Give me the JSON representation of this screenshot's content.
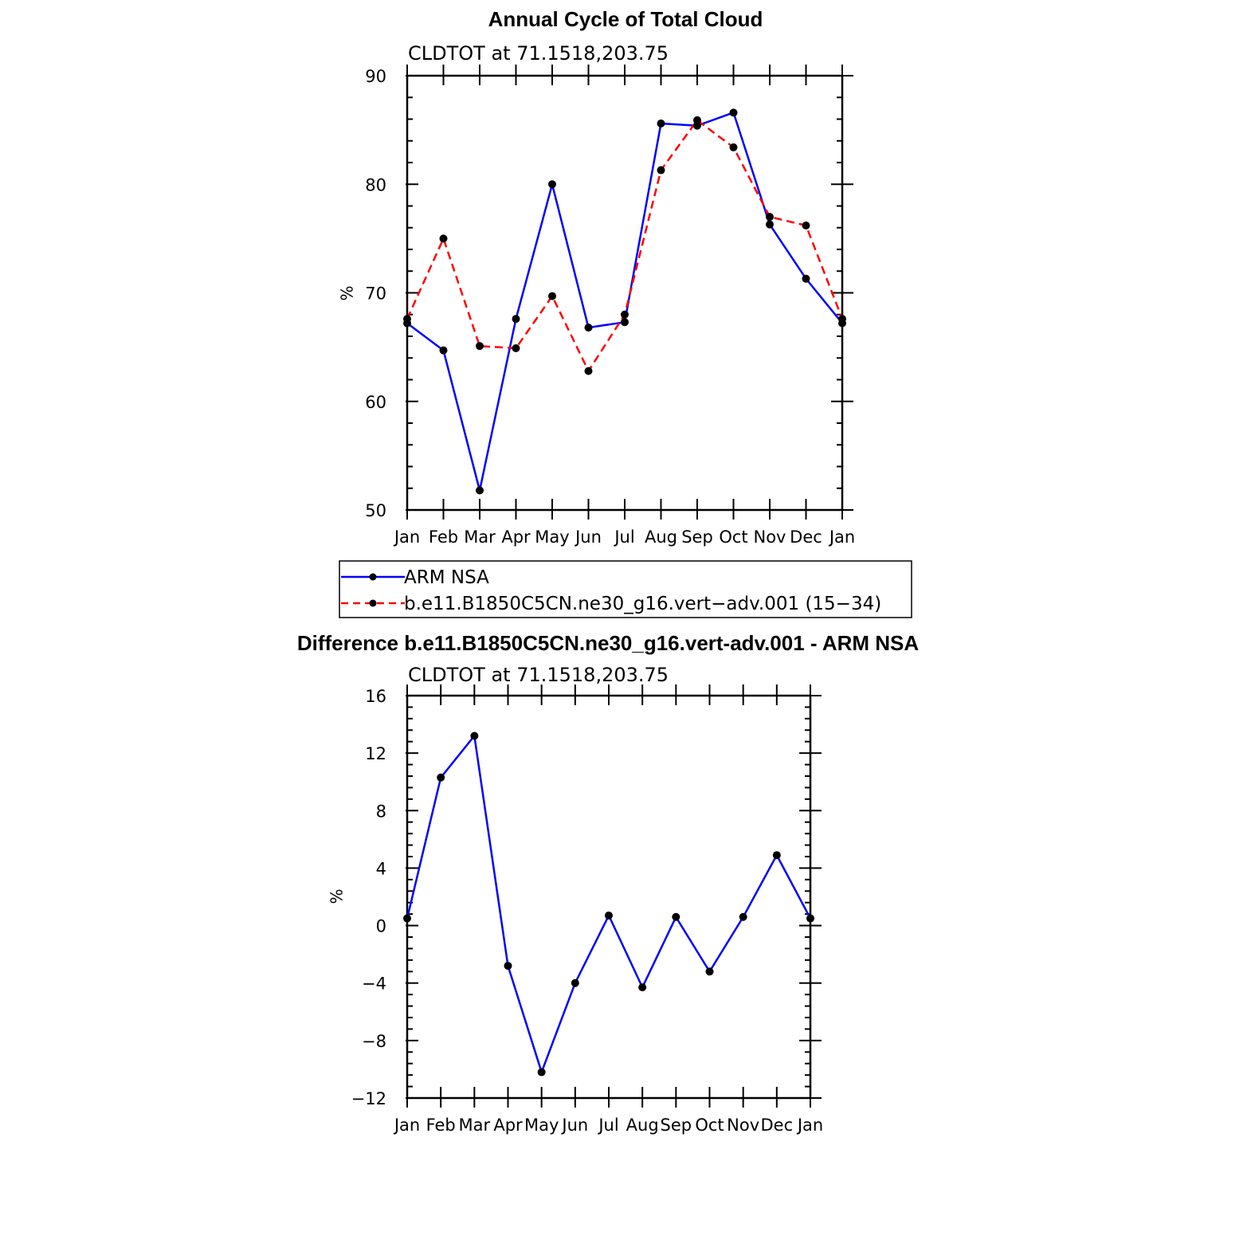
{
  "chart_data": [
    {
      "type": "line",
      "title": "Annual Cycle of Total Cloud",
      "subtitle": "CLDTOT at 71.1518,203.75",
      "ylabel": "%",
      "ylim": [
        50,
        90
      ],
      "yticks": [
        "50",
        "60",
        "70",
        "80",
        "90"
      ],
      "categories": [
        "Jan",
        "Feb",
        "Mar",
        "Apr",
        "May",
        "Jun",
        "Jul",
        "Aug",
        "Sep",
        "Oct",
        "Nov",
        "Dec",
        "Jan"
      ],
      "series": [
        {
          "name": "ARM NSA",
          "color": "#0000ff",
          "dash": "solid",
          "values": [
            67.2,
            64.7,
            51.8,
            67.6,
            80.0,
            66.8,
            67.3,
            85.6,
            85.4,
            86.6,
            76.3,
            71.3,
            67.2
          ]
        },
        {
          "name": "b.e11.B1850C5CN.ne30_g16.vert−adv.001 (15−34)",
          "color": "#ff0000",
          "dash": "dashed",
          "values": [
            67.6,
            75.0,
            65.1,
            64.9,
            69.7,
            62.8,
            68.0,
            81.3,
            85.9,
            83.4,
            77.0,
            76.2,
            67.6
          ]
        }
      ],
      "legend": "bottom-below"
    },
    {
      "type": "line",
      "title": "Difference b.e11.B1850C5CN.ne30_g16.vert-adv.001 - ARM NSA",
      "subtitle": "CLDTOT at 71.1518,203.75",
      "ylabel": "%",
      "ylim": [
        -12,
        16
      ],
      "yticks": [
        "−12",
        "−8",
        "−4",
        "0",
        "4",
        "8",
        "12",
        "16"
      ],
      "categories": [
        "Jan",
        "Feb",
        "Mar",
        "Apr",
        "May",
        "Jun",
        "Jul",
        "Aug",
        "Sep",
        "Oct",
        "Nov",
        "Dec",
        "Jan"
      ],
      "series": [
        {
          "color": "#0000ff",
          "dash": "solid",
          "values": [
            0.5,
            10.3,
            13.2,
            -2.8,
            -10.2,
            -4.0,
            0.7,
            -4.3,
            0.6,
            -3.2,
            0.6,
            4.9,
            0.5
          ]
        }
      ]
    }
  ]
}
